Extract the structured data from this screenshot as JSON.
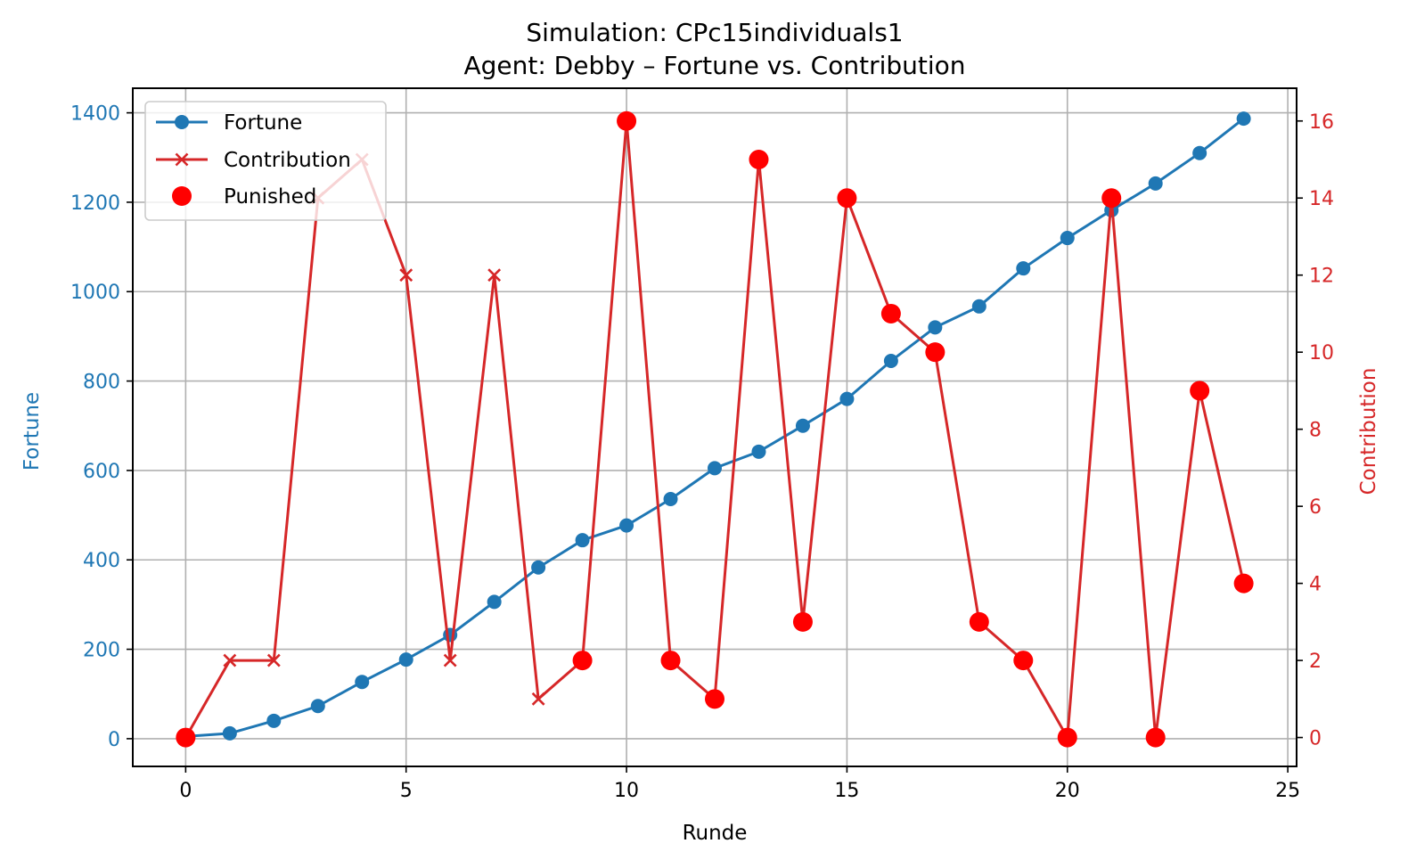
{
  "chart_data": {
    "type": "line",
    "title": "Simulation: CPc15individuals1",
    "subtitle": "Agent: Debby – Fortune vs. Contribution",
    "xlabel": "Runde",
    "ylabel_left": "Fortune",
    "ylabel_right": "Contribution",
    "xlim": [
      -1.2,
      25.2
    ],
    "ylim_left": [
      -62,
      1455
    ],
    "ylim_right": [
      -0.75,
      16.85
    ],
    "x_ticks": [
      0,
      5,
      10,
      15,
      20,
      25
    ],
    "y_left_ticks": [
      0,
      200,
      400,
      600,
      800,
      1000,
      1200,
      1400
    ],
    "y_right_ticks": [
      0,
      2,
      4,
      6,
      8,
      10,
      12,
      14,
      16
    ],
    "grid": true,
    "legend_position": "upper-left",
    "colors": {
      "fortune": "#1f77b4",
      "contribution": "#d62728",
      "punished": "#ff0000",
      "left_axis": "#1f77b4",
      "right_axis": "#d62728"
    },
    "series": [
      {
        "name": "Fortune",
        "axis": "left",
        "marker": "circle",
        "x": [
          0,
          1,
          2,
          3,
          4,
          5,
          6,
          7,
          8,
          9,
          10,
          11,
          12,
          13,
          14,
          15,
          16,
          17,
          18,
          19,
          20,
          21,
          22,
          23,
          24
        ],
        "values": [
          5,
          12,
          40,
          73,
          127,
          177,
          232,
          306,
          383,
          444,
          477,
          536,
          605,
          642,
          700,
          760,
          845,
          920,
          967,
          1052,
          1120,
          1182,
          1242,
          1310,
          1387
        ]
      },
      {
        "name": "Contribution",
        "axis": "right",
        "marker": "x",
        "x": [
          0,
          1,
          2,
          3,
          4,
          5,
          6,
          7,
          8,
          9,
          10,
          11,
          12,
          13,
          14,
          15,
          16,
          17,
          18,
          19,
          20,
          21,
          22,
          23,
          24
        ],
        "values": [
          0,
          2,
          2,
          14,
          15,
          12,
          2,
          12,
          1,
          2,
          16,
          2,
          1,
          15,
          3,
          14,
          11,
          10,
          3,
          2,
          0,
          14,
          0,
          9,
          4
        ]
      },
      {
        "name": "Punished",
        "axis": "right",
        "marker": "big-circle",
        "x": [
          0,
          9,
          10,
          11,
          12,
          13,
          14,
          15,
          16,
          17,
          18,
          19,
          20,
          21,
          22,
          23,
          24
        ],
        "values": [
          0,
          2,
          16,
          2,
          1,
          15,
          3,
          14,
          11,
          10,
          3,
          2,
          0,
          14,
          0,
          9,
          4
        ]
      }
    ]
  }
}
